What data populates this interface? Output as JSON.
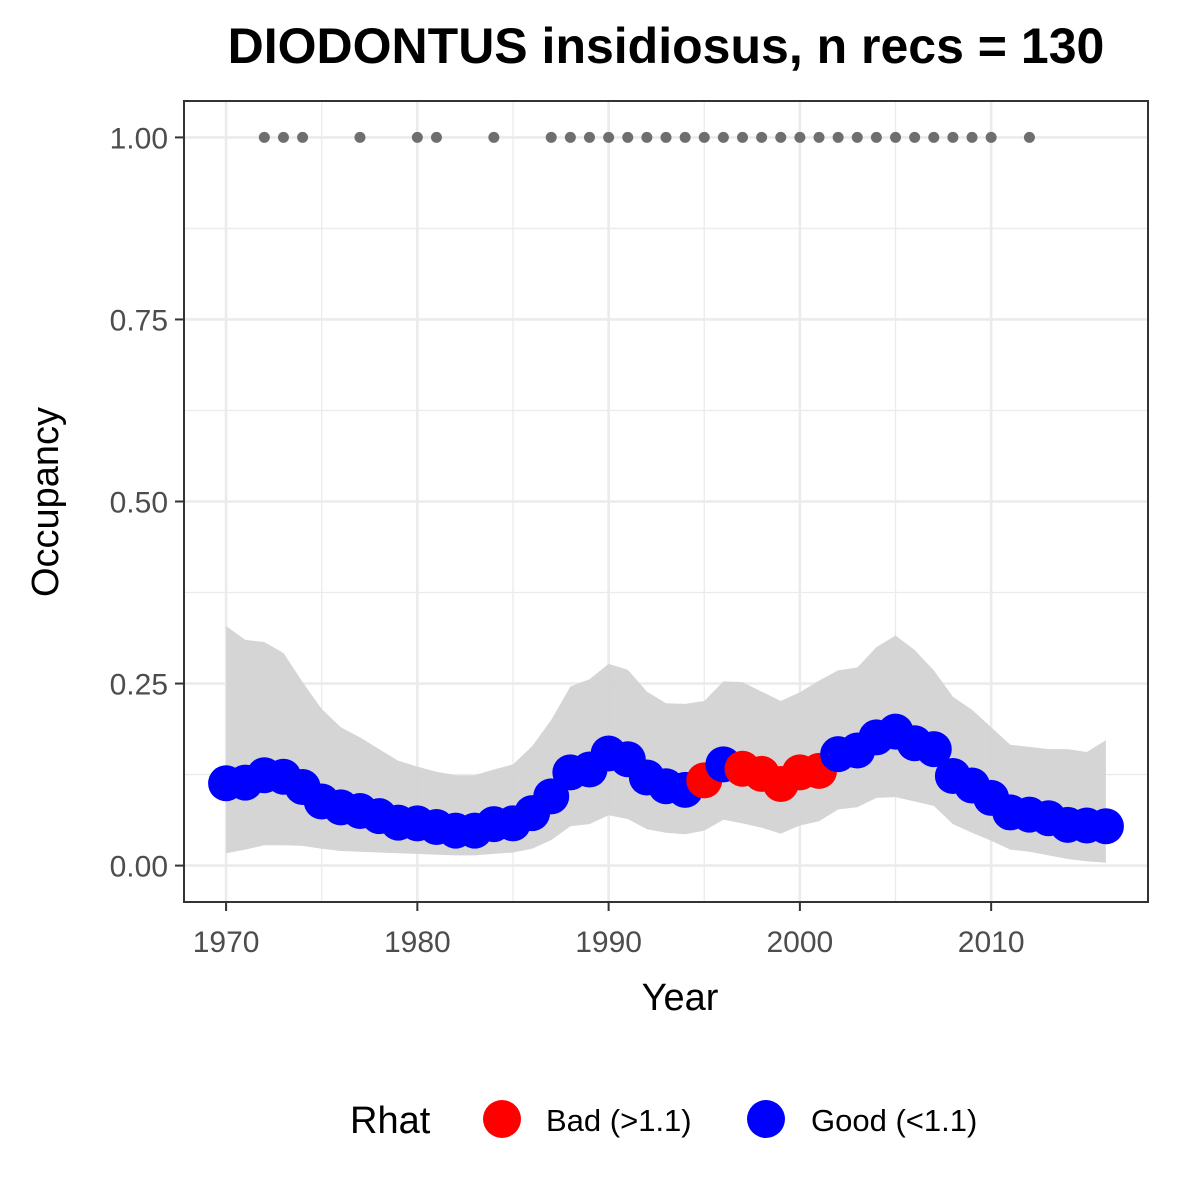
{
  "chart_data": {
    "type": "scatter",
    "title": "DIODONTUS insidiosus, n recs = 130",
    "xlabel": "Year",
    "ylabel": "Occupancy",
    "xlim": [
      1967.8,
      2018.2
    ],
    "ylim": [
      -0.05,
      1.05
    ],
    "x_ticks": [
      1970,
      1980,
      1990,
      2000,
      2010
    ],
    "y_ticks": [
      0.0,
      0.25,
      0.5,
      0.75,
      1.0
    ],
    "x_tick_labels": [
      "1970",
      "1980",
      "1990",
      "2000",
      "2010"
    ],
    "y_tick_labels": [
      "0.00",
      "0.25",
      "0.50",
      "0.75",
      "1.00"
    ],
    "grid": true,
    "legend_position": "bottom",
    "colors": {
      "bad": "#ff0000",
      "good": "#0000ff",
      "ribbon": "#d3d3d3",
      "records": "#6e6e6e"
    },
    "legend": {
      "title": "Rhat",
      "entries": [
        {
          "label": "Bad (>1.1)",
          "color": "#ff0000"
        },
        {
          "label": "Good (<1.1)",
          "color": "#0000ff"
        }
      ]
    },
    "occupancy": [
      {
        "year": 1970,
        "mean": 0.113,
        "lower": 0.017,
        "upper": 0.329,
        "rhat": "good"
      },
      {
        "year": 1971,
        "mean": 0.114,
        "lower": 0.022,
        "upper": 0.31,
        "rhat": "good"
      },
      {
        "year": 1972,
        "mean": 0.124,
        "lower": 0.028,
        "upper": 0.307,
        "rhat": "good"
      },
      {
        "year": 1973,
        "mean": 0.122,
        "lower": 0.028,
        "upper": 0.292,
        "rhat": "good"
      },
      {
        "year": 1974,
        "mean": 0.108,
        "lower": 0.027,
        "upper": 0.252,
        "rhat": "good"
      },
      {
        "year": 1975,
        "mean": 0.088,
        "lower": 0.023,
        "upper": 0.215,
        "rhat": "good"
      },
      {
        "year": 1976,
        "mean": 0.08,
        "lower": 0.02,
        "upper": 0.19,
        "rhat": "good"
      },
      {
        "year": 1977,
        "mean": 0.075,
        "lower": 0.019,
        "upper": 0.176,
        "rhat": "good"
      },
      {
        "year": 1978,
        "mean": 0.068,
        "lower": 0.018,
        "upper": 0.16,
        "rhat": "good"
      },
      {
        "year": 1979,
        "mean": 0.059,
        "lower": 0.017,
        "upper": 0.144,
        "rhat": "good"
      },
      {
        "year": 1980,
        "mean": 0.058,
        "lower": 0.016,
        "upper": 0.136,
        "rhat": "good"
      },
      {
        "year": 1981,
        "mean": 0.053,
        "lower": 0.015,
        "upper": 0.129,
        "rhat": "good"
      },
      {
        "year": 1982,
        "mean": 0.048,
        "lower": 0.014,
        "upper": 0.124,
        "rhat": "good"
      },
      {
        "year": 1983,
        "mean": 0.048,
        "lower": 0.014,
        "upper": 0.124,
        "rhat": "good"
      },
      {
        "year": 1984,
        "mean": 0.057,
        "lower": 0.016,
        "upper": 0.132,
        "rhat": "good"
      },
      {
        "year": 1985,
        "mean": 0.058,
        "lower": 0.018,
        "upper": 0.139,
        "rhat": "good"
      },
      {
        "year": 1986,
        "mean": 0.072,
        "lower": 0.023,
        "upper": 0.164,
        "rhat": "good"
      },
      {
        "year": 1987,
        "mean": 0.095,
        "lower": 0.035,
        "upper": 0.2,
        "rhat": "good"
      },
      {
        "year": 1988,
        "mean": 0.128,
        "lower": 0.054,
        "upper": 0.246,
        "rhat": "good"
      },
      {
        "year": 1989,
        "mean": 0.132,
        "lower": 0.057,
        "upper": 0.256,
        "rhat": "good"
      },
      {
        "year": 1990,
        "mean": 0.154,
        "lower": 0.069,
        "upper": 0.277,
        "rhat": "good"
      },
      {
        "year": 1991,
        "mean": 0.146,
        "lower": 0.064,
        "upper": 0.269,
        "rhat": "good"
      },
      {
        "year": 1992,
        "mean": 0.121,
        "lower": 0.05,
        "upper": 0.239,
        "rhat": "good"
      },
      {
        "year": 1993,
        "mean": 0.109,
        "lower": 0.045,
        "upper": 0.223,
        "rhat": "good"
      },
      {
        "year": 1994,
        "mean": 0.104,
        "lower": 0.043,
        "upper": 0.222,
        "rhat": "good"
      },
      {
        "year": 1995,
        "mean": 0.117,
        "lower": 0.048,
        "upper": 0.226,
        "rhat": "bad"
      },
      {
        "year": 1996,
        "mean": 0.139,
        "lower": 0.063,
        "upper": 0.253,
        "rhat": "good"
      },
      {
        "year": 1997,
        "mean": 0.133,
        "lower": 0.058,
        "upper": 0.252,
        "rhat": "bad"
      },
      {
        "year": 1998,
        "mean": 0.126,
        "lower": 0.052,
        "upper": 0.239,
        "rhat": "bad"
      },
      {
        "year": 1999,
        "mean": 0.112,
        "lower": 0.044,
        "upper": 0.226,
        "rhat": "bad"
      },
      {
        "year": 2000,
        "mean": 0.128,
        "lower": 0.055,
        "upper": 0.238,
        "rhat": "bad"
      },
      {
        "year": 2001,
        "mean": 0.13,
        "lower": 0.061,
        "upper": 0.254,
        "rhat": "bad"
      },
      {
        "year": 2002,
        "mean": 0.153,
        "lower": 0.077,
        "upper": 0.268,
        "rhat": "good"
      },
      {
        "year": 2003,
        "mean": 0.158,
        "lower": 0.08,
        "upper": 0.272,
        "rhat": "good"
      },
      {
        "year": 2004,
        "mean": 0.176,
        "lower": 0.093,
        "upper": 0.3,
        "rhat": "good"
      },
      {
        "year": 2005,
        "mean": 0.184,
        "lower": 0.094,
        "upper": 0.316,
        "rhat": "good"
      },
      {
        "year": 2006,
        "mean": 0.168,
        "lower": 0.088,
        "upper": 0.296,
        "rhat": "good"
      },
      {
        "year": 2007,
        "mean": 0.16,
        "lower": 0.082,
        "upper": 0.268,
        "rhat": "good"
      },
      {
        "year": 2008,
        "mean": 0.123,
        "lower": 0.057,
        "upper": 0.232,
        "rhat": "good"
      },
      {
        "year": 2009,
        "mean": 0.11,
        "lower": 0.045,
        "upper": 0.214,
        "rhat": "good"
      },
      {
        "year": 2010,
        "mean": 0.093,
        "lower": 0.034,
        "upper": 0.19,
        "rhat": "good"
      },
      {
        "year": 2011,
        "mean": 0.073,
        "lower": 0.022,
        "upper": 0.166,
        "rhat": "good"
      },
      {
        "year": 2012,
        "mean": 0.07,
        "lower": 0.019,
        "upper": 0.163,
        "rhat": "good"
      },
      {
        "year": 2013,
        "mean": 0.065,
        "lower": 0.014,
        "upper": 0.16,
        "rhat": "good"
      },
      {
        "year": 2014,
        "mean": 0.056,
        "lower": 0.009,
        "upper": 0.16,
        "rhat": "good"
      },
      {
        "year": 2015,
        "mean": 0.055,
        "lower": 0.006,
        "upper": 0.156,
        "rhat": "good"
      },
      {
        "year": 2016,
        "mean": 0.054,
        "lower": 0.004,
        "upper": 0.172,
        "rhat": "good"
      }
    ],
    "record_years": [
      1972,
      1973,
      1974,
      1977,
      1980,
      1981,
      1984,
      1987,
      1988,
      1989,
      1990,
      1991,
      1992,
      1993,
      1994,
      1995,
      1996,
      1997,
      1998,
      1999,
      2000,
      2001,
      2002,
      2003,
      2004,
      2005,
      2006,
      2007,
      2008,
      2009,
      2010,
      2012
    ],
    "record_value": 1.0
  }
}
